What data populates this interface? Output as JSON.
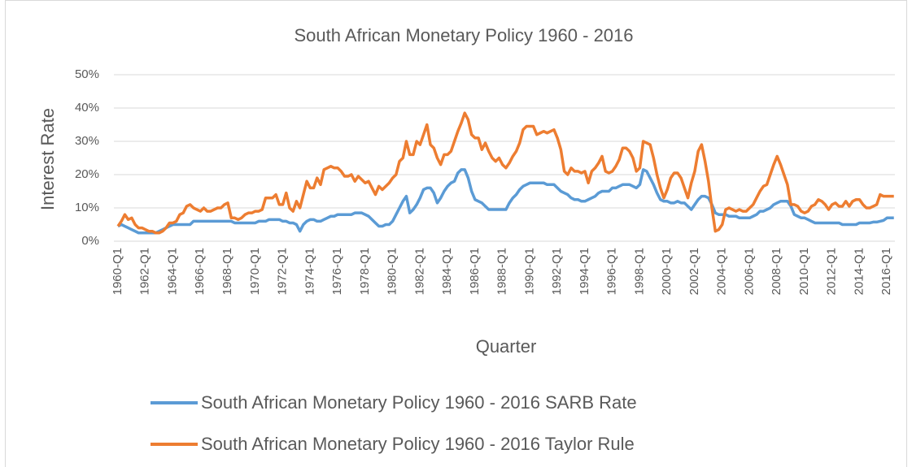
{
  "chart_data": {
    "type": "line",
    "title": "South African Monetary Policy 1960 - 2016",
    "y_label": "Interest Rate",
    "x_label": "Quarter",
    "categories": [
      "1960-Q1",
      null,
      null,
      null,
      null,
      null,
      null,
      null,
      "1962-Q1",
      null,
      null,
      null,
      null,
      null,
      null,
      null,
      "1964-Q1",
      null,
      null,
      null,
      null,
      null,
      null,
      null,
      "1966-Q1",
      null,
      null,
      null,
      null,
      null,
      null,
      null,
      "1968-Q1",
      null,
      null,
      null,
      null,
      null,
      null,
      null,
      "1970-Q1",
      null,
      null,
      null,
      null,
      null,
      null,
      null,
      "1972-Q1",
      null,
      null,
      null,
      null,
      null,
      null,
      null,
      "1974-Q1",
      null,
      null,
      null,
      null,
      null,
      null,
      null,
      "1976-Q1",
      null,
      null,
      null,
      null,
      null,
      null,
      null,
      "1978-Q1",
      null,
      null,
      null,
      null,
      null,
      null,
      null,
      "1980-Q1",
      null,
      null,
      null,
      null,
      null,
      null,
      null,
      "1982-Q1",
      null,
      null,
      null,
      null,
      null,
      null,
      null,
      "1984-Q1",
      null,
      null,
      null,
      null,
      null,
      null,
      null,
      "1986-Q1",
      null,
      null,
      null,
      null,
      null,
      null,
      null,
      "1988-Q1",
      null,
      null,
      null,
      null,
      null,
      null,
      null,
      "1990-Q1",
      null,
      null,
      null,
      null,
      null,
      null,
      null,
      "1992-Q1",
      null,
      null,
      null,
      null,
      null,
      null,
      null,
      "1994-Q1",
      null,
      null,
      null,
      null,
      null,
      null,
      null,
      "1996-Q1",
      null,
      null,
      null,
      null,
      null,
      null,
      null,
      "1998-Q1",
      null,
      null,
      null,
      null,
      null,
      null,
      null,
      "2000-Q1",
      null,
      null,
      null,
      null,
      null,
      null,
      null,
      "2002-Q1",
      null,
      null,
      null,
      null,
      null,
      null,
      null,
      "2004-Q1",
      null,
      null,
      null,
      null,
      null,
      null,
      null,
      "2006-Q1",
      null,
      null,
      null,
      null,
      null,
      null,
      null,
      "2008-Q1",
      null,
      null,
      null,
      null,
      null,
      null,
      null,
      "2010-Q1",
      null,
      null,
      null,
      null,
      null,
      null,
      null,
      "2012-Q1",
      null,
      null,
      null,
      null,
      null,
      null,
      null,
      "2014-Q1",
      null,
      null,
      null,
      null,
      null,
      null,
      null,
      "2016-Q1",
      null,
      null
    ],
    "series": [
      {
        "name": "South African Monetary Policy 1960 - 2016 SARB Rate",
        "color": "#5b9bd5",
        "values": [
          4.5,
          5,
          4.5,
          4,
          3.5,
          3,
          2.5,
          2.5,
          2.5,
          2.5,
          2.5,
          2.5,
          3,
          3.5,
          4,
          4.5,
          5,
          5,
          5,
          5,
          5,
          5,
          6,
          6,
          6,
          6,
          6,
          6,
          6,
          6,
          6,
          6,
          6,
          6,
          5.5,
          5.5,
          5.5,
          5.5,
          5.5,
          5.5,
          5.5,
          6,
          6,
          6,
          6.5,
          6.5,
          6.5,
          6.5,
          6,
          6,
          5.5,
          5.5,
          5,
          3,
          5,
          6,
          6.5,
          6.5,
          6,
          6,
          6.5,
          7,
          7.5,
          7.5,
          8,
          8,
          8,
          8,
          8,
          8.5,
          8.5,
          8.5,
          8,
          7.5,
          6.5,
          5.5,
          4.5,
          4.5,
          5,
          5,
          6,
          8,
          10,
          12,
          13.5,
          8.5,
          9.5,
          11,
          13,
          15.5,
          16,
          16,
          14.5,
          11.5,
          13,
          15,
          16.5,
          17.5,
          18,
          20.5,
          21.5,
          21.5,
          19,
          15,
          12.5,
          12,
          11.5,
          10.5,
          9.5,
          9.5,
          9.5,
          9.5,
          9.5,
          9.5,
          11.5,
          13,
          14,
          15.5,
          16.5,
          17,
          17.5,
          17.5,
          17.5,
          17.5,
          17.5,
          17,
          17,
          17,
          16,
          15,
          14.5,
          14,
          13,
          12.5,
          12.5,
          12,
          12,
          12.5,
          13,
          13.5,
          14.5,
          15,
          15,
          15,
          16,
          16,
          16.5,
          17,
          17,
          17,
          16.5,
          16,
          17,
          21.5,
          21,
          19,
          17,
          14.5,
          12.5,
          12,
          12,
          11.5,
          11.5,
          12,
          11.5,
          11.5,
          10.5,
          9.5,
          11,
          12.5,
          13.5,
          13.5,
          13,
          11,
          8.5,
          8,
          8,
          8,
          7.5,
          7.5,
          7.5,
          7,
          7,
          7,
          7,
          7.5,
          8,
          9,
          9,
          9.5,
          10,
          11,
          11.5,
          12,
          12,
          12,
          10.5,
          8,
          7.5,
          7,
          7,
          6.5,
          6,
          5.5,
          5.5,
          5.5,
          5.5,
          5.5,
          5.5,
          5.5,
          5.5,
          5,
          5,
          5,
          5,
          5,
          5.5,
          5.5,
          5.5,
          5.5,
          5.75,
          5.75,
          6,
          6.25,
          7,
          7,
          7
        ]
      },
      {
        "name": "South African Monetary Policy 1960 - 2016 Taylor Rule",
        "color": "#ed7d31",
        "values": [
          4.5,
          6,
          8,
          6.5,
          7,
          5,
          4,
          4,
          3.5,
          3,
          3,
          2.5,
          2.5,
          3,
          4,
          5.5,
          5.5,
          6,
          8,
          8.5,
          10.5,
          11,
          10,
          9.5,
          9,
          10,
          9,
          9,
          9.5,
          10,
          10,
          11,
          11.5,
          7,
          7,
          6.5,
          7,
          8,
          8.5,
          8.5,
          9,
          9,
          9.5,
          13,
          13,
          13,
          14,
          11,
          11,
          14.5,
          10,
          9,
          12,
          10,
          14,
          18,
          16,
          16,
          19,
          17,
          21.5,
          22,
          22.5,
          22,
          22,
          21,
          19.5,
          19.5,
          20,
          18,
          19.5,
          18.5,
          17.5,
          18,
          16,
          14,
          16.5,
          15.5,
          16.5,
          17.5,
          19,
          20,
          24,
          25,
          30,
          26,
          26,
          30,
          29,
          32,
          35,
          29,
          28,
          25,
          23,
          26,
          26,
          27,
          30,
          33,
          35.5,
          38.5,
          36.5,
          32,
          31,
          31,
          27.5,
          29.5,
          27,
          25,
          24,
          25,
          23,
          22,
          23.5,
          25.5,
          27,
          29.5,
          33.5,
          34.5,
          34.5,
          34.5,
          32,
          32.5,
          33,
          32.5,
          33,
          33.5,
          31,
          27.5,
          21,
          20,
          22,
          21,
          21,
          20.5,
          21,
          17.5,
          21,
          22,
          23.5,
          25.5,
          21,
          20.5,
          21,
          22.5,
          24.5,
          28,
          28,
          27,
          25,
          21,
          22,
          30,
          29.5,
          29,
          25,
          20,
          16,
          13,
          15.5,
          19,
          20.5,
          20.5,
          19,
          16,
          13,
          17.5,
          21,
          27,
          29,
          24,
          18,
          10,
          3,
          3.5,
          5,
          9.5,
          10,
          9.5,
          9,
          9.5,
          9,
          9,
          10,
          11,
          13,
          15,
          16.5,
          17,
          20,
          23,
          25.5,
          23,
          20,
          17,
          11,
          11,
          10.5,
          9,
          8.5,
          9,
          10.5,
          11,
          12.5,
          12,
          11,
          9.5,
          11,
          11.5,
          10.5,
          10.5,
          12,
          10.5,
          12,
          12.5,
          12.5,
          11,
          10,
          10,
          10.5,
          11,
          14,
          13.5,
          13.5,
          13.5,
          13.5
        ]
      }
    ],
    "ylim": [
      0,
      50
    ],
    "yticks": [
      {
        "value": 0,
        "label": "0%"
      },
      {
        "value": 10,
        "label": "10%"
      },
      {
        "value": 20,
        "label": "20%"
      },
      {
        "value": 30,
        "label": "30%"
      },
      {
        "value": 40,
        "label": "40%"
      },
      {
        "value": 50,
        "label": "50%"
      }
    ],
    "grid": true
  }
}
